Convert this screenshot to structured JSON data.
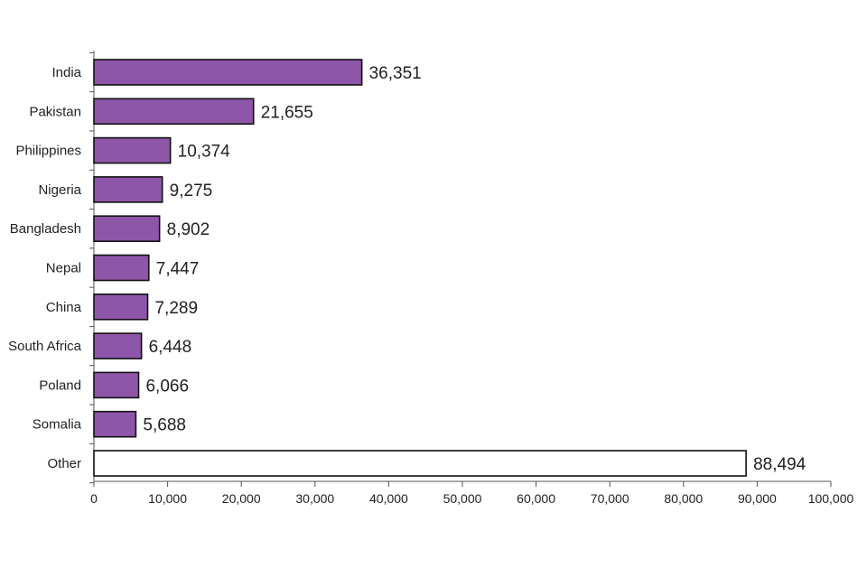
{
  "chart_data": {
    "type": "bar",
    "orientation": "horizontal",
    "categories": [
      "India",
      "Pakistan",
      "Philippines",
      "Nigeria",
      "Bangladesh",
      "Nepal",
      "China",
      "South Africa",
      "Poland",
      "Somalia",
      "Other"
    ],
    "values": [
      36351,
      21655,
      10374,
      9275,
      8902,
      7447,
      7289,
      6448,
      6066,
      5688,
      88494
    ],
    "value_labels": [
      "36,351",
      "21,655",
      "10,374",
      "9,275",
      "8,902",
      "7,447",
      "7,289",
      "6,448",
      "6,066",
      "5,688",
      "88,494"
    ],
    "xlim": [
      0,
      100000
    ],
    "x_ticks": [
      0,
      10000,
      20000,
      30000,
      40000,
      50000,
      60000,
      70000,
      80000,
      90000,
      100000
    ],
    "x_tick_labels": [
      "0",
      "10,000",
      "20,000",
      "30,000",
      "40,000",
      "50,000",
      "60,000",
      "70,000",
      "80,000",
      "90,000",
      "100,000"
    ],
    "grid": false,
    "colors": {
      "bar_fill": "#8e56a8",
      "other_fill": "#ffffff",
      "bar_stroke": "#111111",
      "axis": "#555555",
      "text": "#222222"
    }
  }
}
